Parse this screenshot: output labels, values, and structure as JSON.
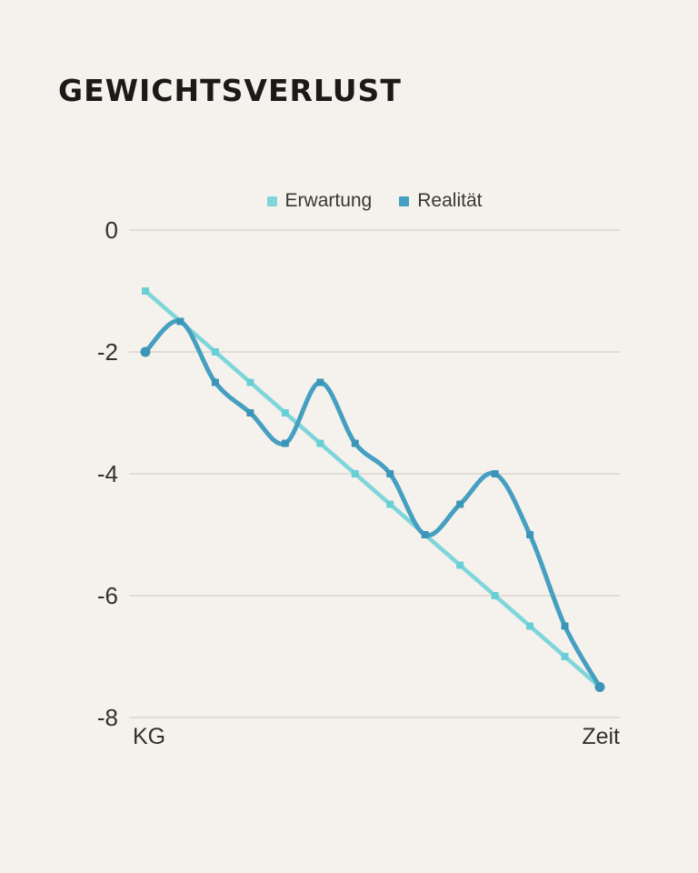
{
  "title": "GEWICHTSVERLUST",
  "colors": {
    "background": "#f5f1ed",
    "gridline": "#e1dcd7",
    "title_text": "#1c1a19",
    "axis_text": "#34302c"
  },
  "chart_data": {
    "type": "line",
    "title": "GEWICHTSVERLUST",
    "xlabel": "Zeit",
    "ylabel": "KG",
    "x": [
      1,
      2,
      3,
      4,
      5,
      6,
      7,
      8,
      9,
      10,
      11,
      12,
      13,
      14
    ],
    "series": [
      {
        "name": "Erwartung",
        "color": "#7fd6da",
        "marker_color": "#69cfd6",
        "line_style": "straight",
        "values": [
          -1,
          -1.5,
          -2,
          -2.5,
          -3,
          -3.5,
          -4,
          -4.5,
          -5,
          -5.5,
          -6,
          -6.5,
          -7,
          -7.5
        ]
      },
      {
        "name": "Realität",
        "color": "#459fc0",
        "marker_color": "#3b95b8",
        "line_style": "smooth",
        "values": [
          -2,
          -1.5,
          -2.5,
          -3,
          -3.5,
          -2.5,
          -3.5,
          -4,
          -5,
          -4.5,
          -4,
          -5,
          -6.5,
          -7.5
        ]
      }
    ],
    "ylim": [
      -8,
      0
    ],
    "y_ticks": [
      0,
      -2,
      -4,
      -6,
      -8
    ],
    "x_tick_labels": [],
    "grid": "horizontal",
    "legend_position": "top"
  }
}
